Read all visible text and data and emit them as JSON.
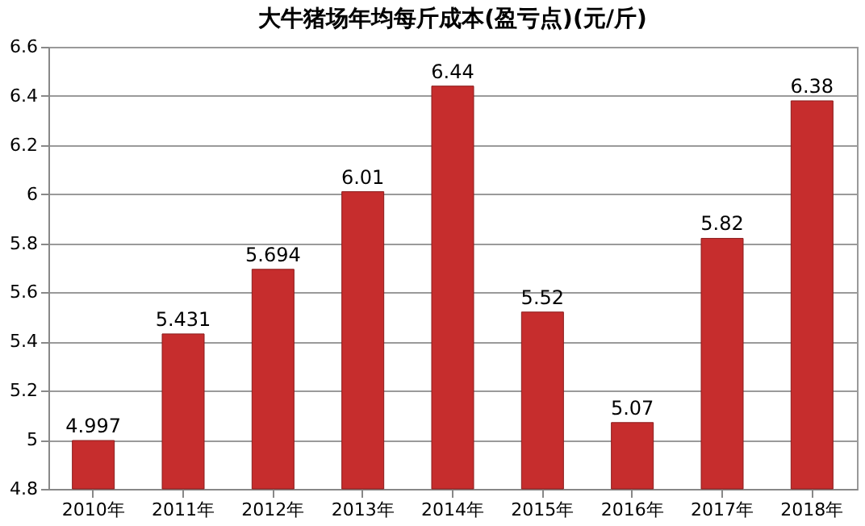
{
  "chart_data": {
    "type": "bar",
    "title": "大牛猪场年均每斤成本(盈亏点)(元/斤)",
    "categories": [
      "2010年",
      "2011年",
      "2012年",
      "2013年",
      "2014年",
      "2015年",
      "2016年",
      "2017年",
      "2018年"
    ],
    "values": [
      4.997,
      5.431,
      5.694,
      6.01,
      6.44,
      5.52,
      5.07,
      5.82,
      6.38
    ],
    "color": "#c62d2d",
    "ylim": [
      4.8,
      6.6
    ],
    "yticks": [
      4.8,
      5,
      5.2,
      5.4,
      5.6,
      5.8,
      6,
      6.2,
      6.4,
      6.6
    ],
    "grid": true,
    "data_labels": true
  }
}
